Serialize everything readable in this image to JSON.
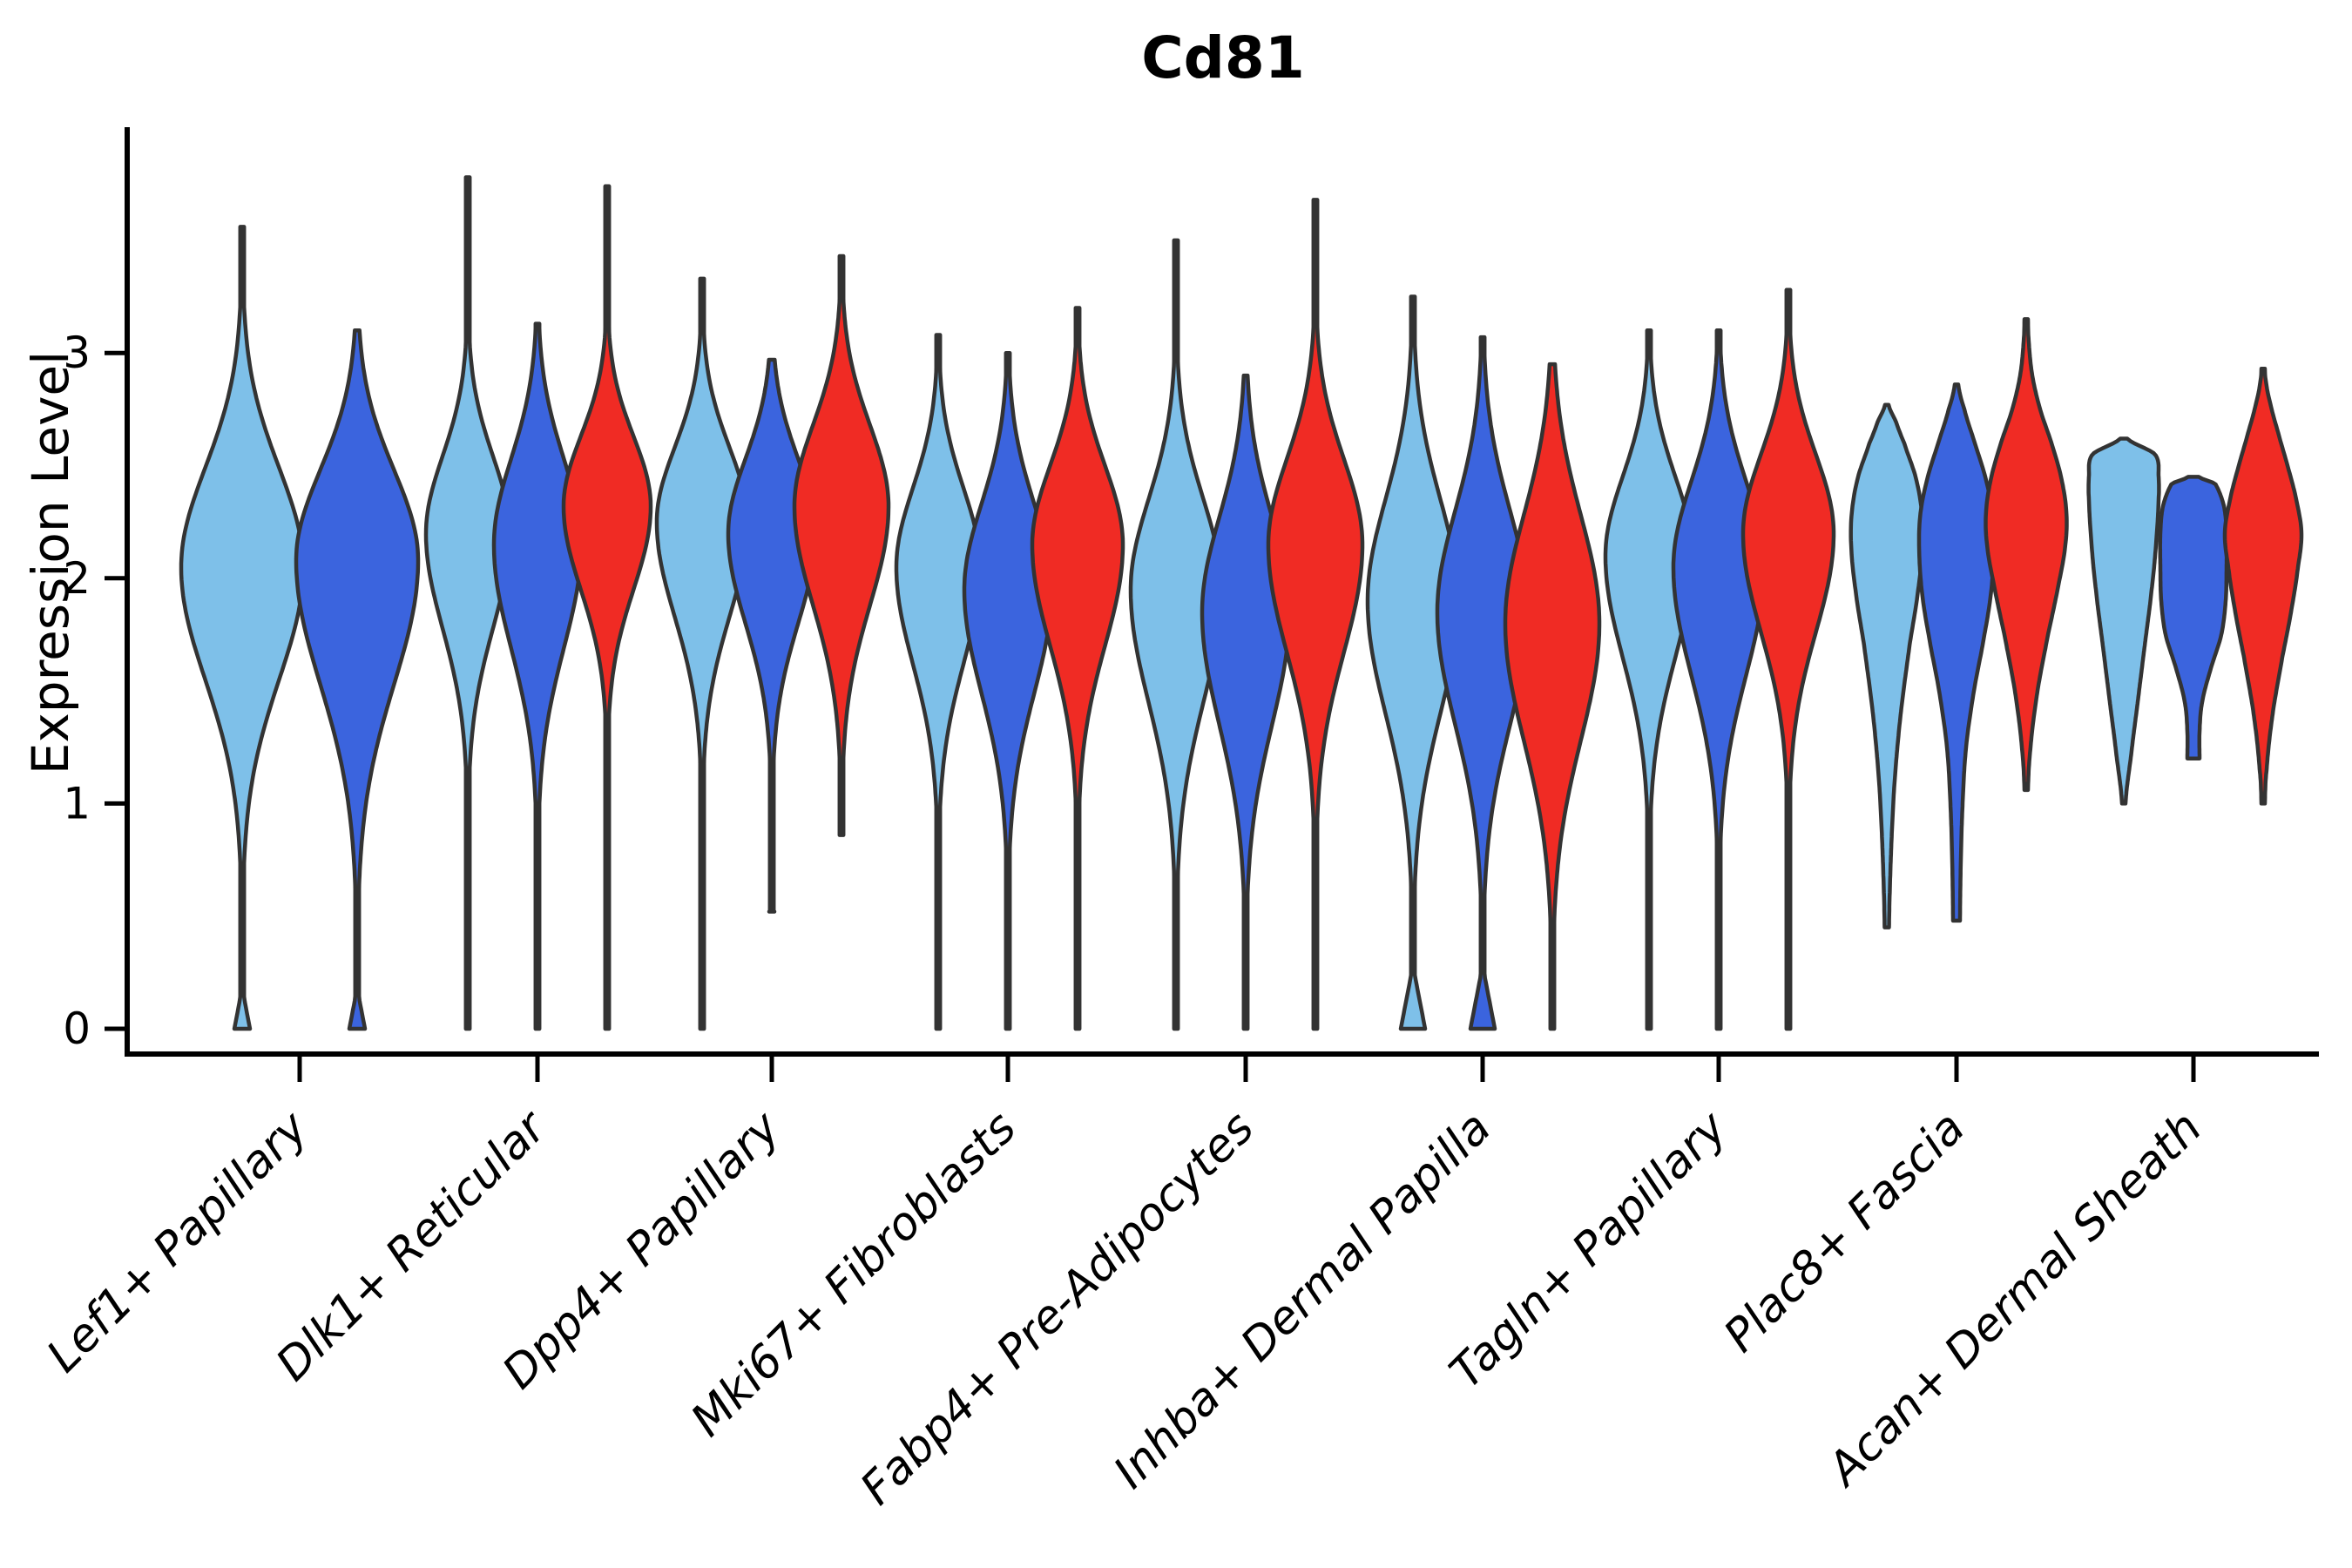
{
  "title": "Cd81",
  "ylabel": "Expression Level",
  "chart_data": {
    "type": "violin",
    "title": "Cd81",
    "xlabel": "",
    "ylabel": "Expression Level",
    "ylim": [
      -0.15,
      4.0
    ],
    "yticks": [
      0,
      1,
      2,
      3
    ],
    "grid": false,
    "legend": "none",
    "categories": [
      "Lef1+ Papillary",
      "Dlk1+ Reticular",
      "Dpp4+ Papillary",
      "Mki67+ Fibroblasts",
      "Fabp4+ Pre-Adipocytes",
      "Inhba+ Dermal Papilla",
      "Tagln+ Papillary",
      "Plac8+ Fascia",
      "Acan+ Dermal Sheath"
    ],
    "series_colors": {
      "lightblue": "#7EC0E9",
      "blue": "#3B64DE",
      "red": "#F02B24"
    },
    "stroke_color": "#333333",
    "groups": [
      {
        "category": "Lef1+ Papillary",
        "violins": [
          {
            "color": "lightblue",
            "min": 0,
            "max": 3.56,
            "mode": 2.05,
            "s_lo": 0.5,
            "s_hi": 0.44,
            "w": 70,
            "bulge": {
              "w": 9,
              "top": 0.18
            },
            "cap": "flat"
          },
          {
            "color": "blue",
            "min": 0,
            "max": 3.1,
            "mode": 2.08,
            "s_lo": 0.55,
            "s_hi": 0.4,
            "w": 70,
            "bulge": {
              "w": 9,
              "top": 0.18
            },
            "cap": "flat"
          }
        ]
      },
      {
        "category": "Dlk1+ Reticular",
        "violins": [
          {
            "color": "lightblue",
            "min": 0,
            "max": 3.78,
            "mode": 2.2,
            "s_lo": 0.42,
            "s_hi": 0.34,
            "w": 48
          },
          {
            "color": "blue",
            "min": 0,
            "max": 3.13,
            "mode": 2.15,
            "s_lo": 0.46,
            "s_hi": 0.38,
            "w": 50
          },
          {
            "color": "red",
            "min": 0,
            "max": 3.74,
            "mode": 2.32,
            "s_lo": 0.37,
            "s_hi": 0.31,
            "w": 50
          }
        ]
      },
      {
        "category": "Dpp4+ Papillary",
        "violins": [
          {
            "color": "lightblue",
            "min": 0,
            "max": 3.33,
            "mode": 2.25,
            "s_lo": 0.42,
            "s_hi": 0.33,
            "w": 52
          },
          {
            "color": "blue",
            "min": 0.52,
            "max": 2.97,
            "mode": 2.2,
            "s_lo": 0.4,
            "s_hi": 0.33,
            "w": 50,
            "cap": "flat",
            "capw": 3
          },
          {
            "color": "red",
            "min": 0.86,
            "max": 3.43,
            "mode": 2.32,
            "s_lo": 0.44,
            "s_hi": 0.36,
            "w": 54
          }
        ]
      },
      {
        "category": "Mki67+ Fibroblasts",
        "violins": [
          {
            "color": "lightblue",
            "min": 0,
            "max": 3.08,
            "mode": 2.05,
            "s_lo": 0.43,
            "s_hi": 0.35,
            "w": 48
          },
          {
            "color": "blue",
            "min": 0,
            "max": 3.0,
            "mode": 1.95,
            "s_lo": 0.46,
            "s_hi": 0.38,
            "w": 50
          },
          {
            "color": "red",
            "min": 0,
            "max": 3.2,
            "mode": 2.15,
            "s_lo": 0.45,
            "s_hi": 0.35,
            "w": 52
          }
        ]
      },
      {
        "category": "Fabp4+ Pre-Adipocytes",
        "violins": [
          {
            "color": "lightblue",
            "min": 0,
            "max": 3.5,
            "mode": 1.95,
            "s_lo": 0.5,
            "s_hi": 0.4,
            "w": 52
          },
          {
            "color": "blue",
            "min": 0,
            "max": 2.9,
            "mode": 1.85,
            "s_lo": 0.5,
            "s_hi": 0.42,
            "w": 50
          },
          {
            "color": "red",
            "min": 0,
            "max": 3.68,
            "mode": 2.15,
            "s_lo": 0.48,
            "s_hi": 0.38,
            "w": 54
          }
        ]
      },
      {
        "category": "Inhba+ Dermal Papilla",
        "violins": [
          {
            "color": "lightblue",
            "min": 0,
            "max": 3.25,
            "mode": 1.9,
            "s_lo": 0.5,
            "s_hi": 0.45,
            "w": 52,
            "bulge": {
              "w": 14,
              "top": 0.28
            },
            "cap": "flat"
          },
          {
            "color": "blue",
            "min": 0,
            "max": 3.07,
            "mode": 1.85,
            "s_lo": 0.5,
            "s_hi": 0.45,
            "w": 52,
            "bulge": {
              "w": 14,
              "top": 0.28
            },
            "cap": "flat"
          },
          {
            "color": "red",
            "min": 0,
            "max": 2.95,
            "mode": 1.8,
            "s_lo": 0.52,
            "s_hi": 0.48,
            "w": 54
          }
        ]
      },
      {
        "category": "Tagln+ Papillary",
        "violins": [
          {
            "color": "lightblue",
            "min": 0,
            "max": 3.1,
            "mode": 2.1,
            "s_lo": 0.45,
            "s_hi": 0.35,
            "w": 50
          },
          {
            "color": "blue",
            "min": 0,
            "max": 3.1,
            "mode": 2.05,
            "s_lo": 0.48,
            "s_hi": 0.38,
            "w": 52
          },
          {
            "color": "red",
            "min": 0,
            "max": 3.28,
            "mode": 2.2,
            "s_lo": 0.44,
            "s_hi": 0.35,
            "w": 52
          }
        ]
      },
      {
        "category": "Plac8+ Fascia",
        "violins": [
          {
            "color": "lightblue",
            "cap": "flat",
            "capw": 2.5,
            "knots": [
              [
                0.45,
                2.5
              ],
              [
                0.8,
                5
              ],
              [
                1.1,
                9
              ],
              [
                1.4,
                16
              ],
              [
                1.7,
                26
              ],
              [
                1.95,
                36
              ],
              [
                2.15,
                41
              ],
              [
                2.3,
                40
              ],
              [
                2.45,
                33
              ],
              [
                2.6,
                20
              ],
              [
                2.7,
                10
              ],
              [
                2.77,
                2
              ]
            ]
          },
          {
            "color": "blue",
            "cap": "flat",
            "capw": 4,
            "knots": [
              [
                0.48,
                4
              ],
              [
                0.75,
                5
              ],
              [
                1.0,
                7
              ],
              [
                1.25,
                11
              ],
              [
                1.5,
                20
              ],
              [
                1.75,
                32
              ],
              [
                1.95,
                40
              ],
              [
                2.15,
                43
              ],
              [
                2.3,
                41
              ],
              [
                2.45,
                33
              ],
              [
                2.6,
                21
              ],
              [
                2.75,
                9
              ],
              [
                2.86,
                2
              ]
            ]
          },
          {
            "color": "red",
            "knots": [
              [
                1.06,
                2
              ],
              [
                1.25,
                5
              ],
              [
                1.5,
                13
              ],
              [
                1.75,
                25
              ],
              [
                1.95,
                36
              ],
              [
                2.15,
                45
              ],
              [
                2.3,
                46
              ],
              [
                2.45,
                40
              ],
              [
                2.6,
                29
              ],
              [
                2.75,
                16
              ],
              [
                2.9,
                7
              ],
              [
                3.05,
                3
              ],
              [
                3.15,
                2
              ]
            ]
          }
        ]
      },
      {
        "category": "Acan+ Dermal Sheath",
        "violins": [
          {
            "color": "lightblue",
            "knots": [
              [
                1.0,
                2
              ],
              [
                1.2,
                8
              ],
              [
                1.45,
                16
              ],
              [
                1.7,
                24
              ],
              [
                1.95,
                32
              ],
              [
                2.15,
                37
              ],
              [
                2.35,
                40
              ],
              [
                2.45,
                40
              ],
              [
                2.55,
                36
              ],
              [
                2.62,
                4
              ]
            ]
          },
          {
            "color": "blue",
            "cap": "flat",
            "capw": 7,
            "knots": [
              [
                1.2,
                7
              ],
              [
                1.32,
                7
              ],
              [
                1.45,
                10
              ],
              [
                1.6,
                20
              ],
              [
                1.75,
                32
              ],
              [
                1.9,
                37
              ],
              [
                2.05,
                38
              ],
              [
                2.2,
                38
              ],
              [
                2.32,
                35
              ],
              [
                2.42,
                25
              ],
              [
                2.45,
                6
              ]
            ]
          },
          {
            "color": "red",
            "knots": [
              [
                1.0,
                2
              ],
              [
                1.15,
                4
              ],
              [
                1.4,
                11
              ],
              [
                1.65,
                22
              ],
              [
                1.85,
                32
              ],
              [
                2.05,
                40
              ],
              [
                2.2,
                44
              ],
              [
                2.35,
                38
              ],
              [
                2.5,
                28
              ],
              [
                2.65,
                17
              ],
              [
                2.78,
                8
              ],
              [
                2.88,
                3
              ],
              [
                2.93,
                2
              ]
            ]
          }
        ]
      }
    ]
  }
}
